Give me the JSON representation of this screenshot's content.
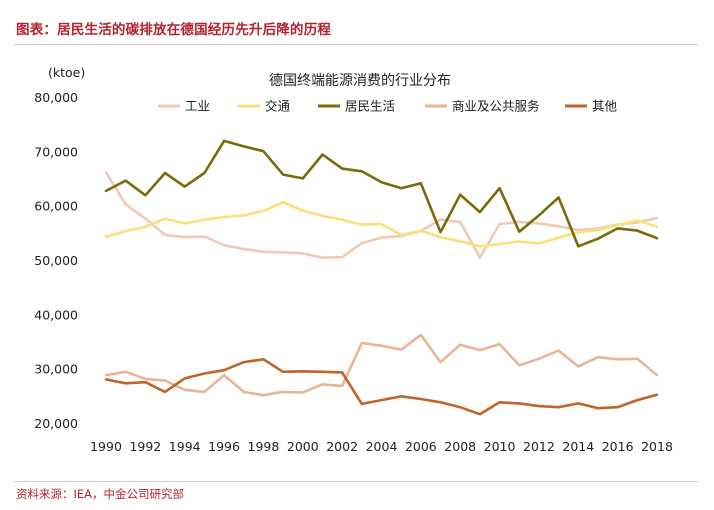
{
  "header": {
    "title": "图表：居民生活的碳排放在德国经历先升后降的历程"
  },
  "footer": {
    "source": "资料来源：IEA，中金公司研究部"
  },
  "chart_data": {
    "type": "line",
    "title": "德国终端能源消费的行业分布",
    "ylabel": "(ktoe)",
    "xlabel": "",
    "ylim": [
      20000,
      80000
    ],
    "yticks": [
      20000,
      30000,
      40000,
      50000,
      60000,
      70000,
      80000
    ],
    "ytick_labels": [
      "20,000",
      "30,000",
      "40,000",
      "50,000",
      "60,000",
      "70,000",
      "80,000"
    ],
    "xticks": [
      1990,
      1992,
      1994,
      1996,
      1998,
      2000,
      2002,
      2004,
      2006,
      2008,
      2010,
      2012,
      2014,
      2016,
      2018
    ],
    "x": [
      1990,
      1991,
      1992,
      1993,
      1994,
      1995,
      1996,
      1997,
      1998,
      1999,
      2000,
      2001,
      2002,
      2003,
      2004,
      2005,
      2006,
      2007,
      2008,
      2009,
      2010,
      2011,
      2012,
      2013,
      2014,
      2015,
      2016,
      2017,
      2018
    ],
    "grid": false,
    "legend_position": "top",
    "series": [
      {
        "name": "工业",
        "color": "#f2c9b5",
        "values": [
          66300,
          60400,
          57800,
          54800,
          54400,
          54500,
          52900,
          52200,
          51700,
          51600,
          51400,
          50600,
          50700,
          53300,
          54300,
          54600,
          55600,
          57600,
          57200,
          50600,
          56800,
          57200,
          56900,
          56400,
          55700,
          56000,
          56700,
          57100,
          57900
        ]
      },
      {
        "name": "交通",
        "color": "#f8e17a",
        "values": [
          54500,
          55500,
          56300,
          57800,
          56900,
          57600,
          58100,
          58400,
          59200,
          60800,
          59300,
          58300,
          57600,
          56700,
          56800,
          54800,
          55600,
          54400,
          53600,
          52700,
          53100,
          53600,
          53200,
          54300,
          55300,
          55700,
          56600,
          57500,
          56300
        ]
      },
      {
        "name": "居民生活",
        "color": "#7b6a0a",
        "values": [
          62900,
          64800,
          62100,
          66200,
          63700,
          66200,
          72100,
          71100,
          70200,
          65900,
          65200,
          69600,
          67000,
          66500,
          64500,
          63400,
          64300,
          55300,
          62200,
          59000,
          63400,
          55400,
          58400,
          61700,
          52700,
          54100,
          56000,
          55600,
          54200
        ]
      },
      {
        "name": "商业及公共服务",
        "color": "#e8b595",
        "values": [
          29000,
          29600,
          28300,
          28000,
          26300,
          25900,
          29000,
          25900,
          25300,
          25900,
          25800,
          27300,
          27000,
          34900,
          34400,
          33700,
          36400,
          31400,
          34600,
          33600,
          34700,
          30800,
          32000,
          33500,
          30600,
          32300,
          31900,
          32000,
          29000
        ]
      },
      {
        "name": "其他",
        "color": "#c0642a",
        "values": [
          28200,
          27500,
          27700,
          25900,
          28400,
          29300,
          29900,
          31400,
          31900,
          29600,
          29700,
          29600,
          29500,
          23700,
          24400,
          25100,
          24600,
          24000,
          23100,
          21800,
          24000,
          23800,
          23300,
          23100,
          23800,
          22900,
          23100,
          24400,
          25400
        ]
      }
    ]
  }
}
